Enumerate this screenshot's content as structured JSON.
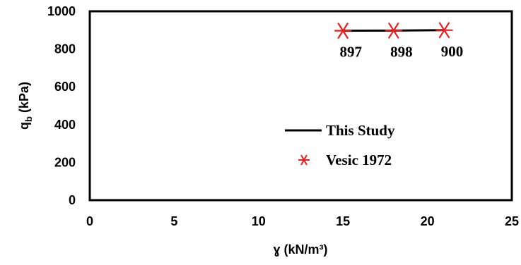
{
  "chart_data": {
    "type": "line",
    "xlabel": "ɣ (kN/m³)",
    "ylabel": {
      "main": "q",
      "subscript": "b",
      "unit": " (kPa)"
    },
    "xlim": [
      0,
      25
    ],
    "ylim": [
      0,
      1000
    ],
    "xticks": [
      0,
      5,
      10,
      15,
      20,
      25
    ],
    "yticks": [
      0,
      200,
      400,
      600,
      800,
      1000
    ],
    "grid": false,
    "legend_position": "lower-right",
    "series": [
      {
        "name": "This Study",
        "kind": "line",
        "color": "#000000",
        "x": [
          15,
          18,
          21
        ],
        "y": [
          897,
          898,
          900
        ]
      },
      {
        "name": "Vesic 1972",
        "kind": "scatter",
        "marker": "asterisk",
        "color": "#ee1c1c",
        "x": [
          15,
          18,
          21
        ],
        "y": [
          897,
          898,
          900
        ]
      }
    ],
    "data_labels": [
      {
        "x": 15,
        "y": 897,
        "text": "897"
      },
      {
        "x": 18,
        "y": 898,
        "text": "898"
      },
      {
        "x": 21,
        "y": 900,
        "text": "900"
      }
    ]
  }
}
